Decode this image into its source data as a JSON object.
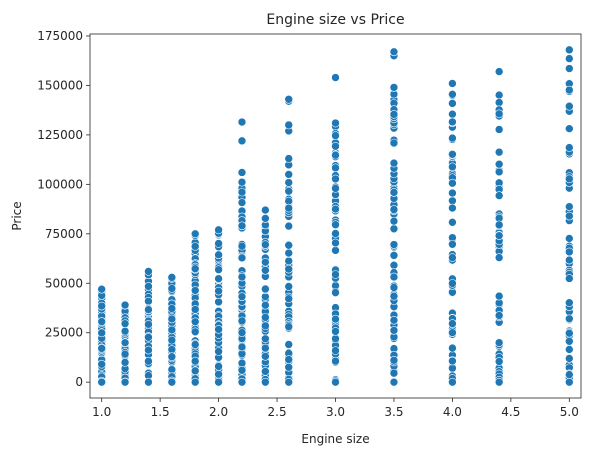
{
  "chart_data": {
    "type": "scatter",
    "title": "Engine size vs Price",
    "xlabel": "Engine size",
    "ylabel": "Price",
    "xlim": [
      0.9,
      5.1
    ],
    "ylim": [
      -8000,
      176000
    ],
    "xticks": [
      1.0,
      1.5,
      2.0,
      2.5,
      3.0,
      3.5,
      4.0,
      4.5,
      5.0
    ],
    "xtick_labels": [
      "1.0",
      "1.5",
      "2.0",
      "2.5",
      "3.0",
      "3.5",
      "4.0",
      "4.5",
      "5.0"
    ],
    "yticks": [
      0,
      25000,
      50000,
      75000,
      100000,
      125000,
      150000,
      175000
    ],
    "ytick_labels": [
      "0",
      "25000",
      "50000",
      "75000",
      "100000",
      "125000",
      "150000",
      "175000"
    ],
    "grid": false,
    "legend": false,
    "marker_color": "#1f77b4",
    "marker_edge_color": "#ffffff",
    "columns": [
      {
        "x": 1.0,
        "min": 0,
        "max": 47000,
        "outliers": []
      },
      {
        "x": 1.2,
        "min": 0,
        "max": 39000,
        "outliers": []
      },
      {
        "x": 1.4,
        "min": 0,
        "max": 56000,
        "outliers": []
      },
      {
        "x": 1.6,
        "min": 0,
        "max": 53000,
        "outliers": []
      },
      {
        "x": 1.8,
        "min": 0,
        "max": 75000,
        "outliers": []
      },
      {
        "x": 2.0,
        "min": 0,
        "max": 77000,
        "outliers": []
      },
      {
        "x": 2.2,
        "min": 0,
        "max": 106000,
        "outliers": [
          122000,
          131500
        ]
      },
      {
        "x": 2.4,
        "min": 0,
        "max": 87000,
        "outliers": []
      },
      {
        "x": 2.6,
        "min": 0,
        "max": 113000,
        "outliers": [
          127000,
          130000,
          142000,
          143000
        ]
      },
      {
        "x": 3.0,
        "min": 0,
        "max": 131000,
        "outliers": [
          154000
        ]
      },
      {
        "x": 3.5,
        "min": 0,
        "max": 149000,
        "outliers": [
          165000,
          167000
        ]
      },
      {
        "x": 4.0,
        "min": 0,
        "max": 151000,
        "outliers": []
      },
      {
        "x": 4.4,
        "min": 0,
        "max": 157000,
        "outliers": []
      },
      {
        "x": 5.0,
        "min": 0,
        "max": 168000,
        "outliers": []
      }
    ]
  }
}
